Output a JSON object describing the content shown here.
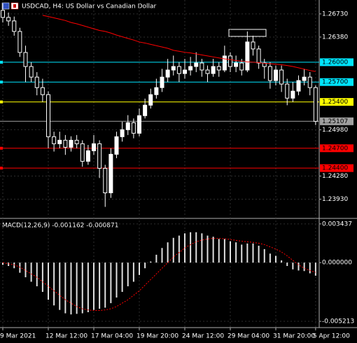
{
  "chart_data": [
    {
      "type": "candlestick",
      "title": "USDCAD, H4:  US Dollar vs Canadian Dollar",
      "categories": [
        "9 Mar 2021",
        null,
        null,
        null,
        null,
        null,
        null,
        null,
        "12 Mar 12:00",
        null,
        null,
        null,
        null,
        null,
        null,
        null,
        "17 Mar 04:00",
        null,
        null,
        null,
        null,
        null,
        null,
        null,
        "19 Mar 20:00",
        null,
        null,
        null,
        null,
        null,
        null,
        null,
        "24 Mar 12:00",
        null,
        null,
        null,
        null,
        null,
        null,
        null,
        "29 Mar 04:00",
        null,
        null,
        null,
        null,
        null,
        null,
        null,
        "31 Mar 20:00",
        null,
        null,
        null,
        null,
        null,
        null,
        "5 Apr 12:00"
      ],
      "open": [
        1.26783,
        1.26677,
        1.26624,
        1.26465,
        1.26147,
        1.25935,
        1.25775,
        1.25616,
        1.2551,
        1.24874,
        1.24768,
        1.24821,
        1.24715,
        1.24821,
        1.24768,
        1.24503,
        1.24662,
        1.24768,
        1.24397,
        1.24026,
        1.24609,
        1.24874,
        1.2498,
        1.25086,
        1.24927,
        1.25192,
        1.25351,
        1.2551,
        1.25616,
        1.25775,
        1.25882,
        1.25935,
        1.25829,
        1.25882,
        1.25935,
        1.25988,
        1.25882,
        1.25829,
        1.25935,
        1.25882,
        1.26094,
        1.25935,
        1.25988,
        1.25882,
        1.26306,
        1.262,
        1.25988,
        1.25935,
        1.25723,
        1.25882,
        1.2567,
        1.25457,
        1.25563,
        1.25723,
        1.25775,
        1.25616
      ],
      "high": [
        1.26889,
        1.2675,
        1.2669,
        1.2652,
        1.2625,
        1.26,
        1.2585,
        1.2575,
        1.2556,
        1.2495,
        1.2495,
        1.249,
        1.2488,
        1.249,
        1.2482,
        1.2475,
        1.249,
        1.2482,
        1.2445,
        1.247,
        1.2495,
        1.251,
        1.252,
        1.2515,
        1.253,
        1.2545,
        1.256,
        1.2575,
        1.259,
        1.2605,
        1.261,
        1.26,
        1.2605,
        1.2608,
        1.2615,
        1.2605,
        1.2595,
        1.2605,
        1.26,
        1.2625,
        1.2615,
        1.261,
        1.2605,
        1.26465,
        1.264,
        1.2625,
        1.2605,
        1.26,
        1.2595,
        1.2595,
        1.2575,
        1.257,
        1.258,
        1.259,
        1.2585,
        1.2565
      ],
      "low": [
        1.266,
        1.2655,
        1.264,
        1.2608,
        1.257,
        1.257,
        1.255,
        1.254,
        1.247,
        1.2465,
        1.247,
        1.246,
        1.2465,
        1.247,
        1.2442,
        1.2445,
        1.246,
        1.2425,
        1.23814,
        1.2395,
        1.2455,
        1.248,
        1.249,
        1.2485,
        1.2488,
        1.2515,
        1.253,
        1.2545,
        1.2555,
        1.257,
        1.258,
        1.257,
        1.2575,
        1.258,
        1.2585,
        1.2578,
        1.257,
        1.2578,
        1.2578,
        1.2585,
        1.2585,
        1.2585,
        1.258,
        1.2585,
        1.261,
        1.259,
        1.2575,
        1.256,
        1.2565,
        1.2555,
        1.2535,
        1.254,
        1.255,
        1.2565,
        1.255,
        1.2505
      ],
      "close": [
        1.26677,
        1.26624,
        1.26465,
        1.26147,
        1.25935,
        1.25775,
        1.25616,
        1.2551,
        1.24874,
        1.24768,
        1.24821,
        1.24715,
        1.24821,
        1.24768,
        1.24503,
        1.24662,
        1.24768,
        1.24397,
        1.24026,
        1.24609,
        1.24874,
        1.2498,
        1.25086,
        1.24927,
        1.25192,
        1.25351,
        1.2551,
        1.25616,
        1.25775,
        1.25882,
        1.25935,
        1.25829,
        1.25882,
        1.25935,
        1.25988,
        1.25882,
        1.25829,
        1.25935,
        1.25882,
        1.26094,
        1.25935,
        1.25988,
        1.25882,
        1.26306,
        1.262,
        1.25988,
        1.25935,
        1.25723,
        1.25882,
        1.2567,
        1.25457,
        1.25563,
        1.25723,
        1.25775,
        1.25616,
        1.25107
      ],
      "up_color": "#ffffff",
      "down_color": "#000000",
      "wick_color": "#ffffff",
      "moving_average": {
        "color": "#ff0000",
        "values": [
          null,
          null,
          null,
          null,
          null,
          null,
          null,
          1.26709,
          1.2669,
          1.2667,
          1.2665,
          1.2663,
          1.266,
          1.2658,
          1.26555,
          1.2653,
          1.26505,
          1.2648,
          1.26465,
          1.2644,
          1.2641,
          1.26385,
          1.2636,
          1.26335,
          1.26306,
          1.2629,
          1.2627,
          1.2625,
          1.2623,
          1.2621,
          1.2618,
          1.26165,
          1.2615,
          1.2614,
          1.26125,
          1.2611,
          1.26095,
          1.2608,
          1.26065,
          1.2605,
          1.2604,
          1.26025,
          1.26015,
          1.26005,
          1.26,
          1.25995,
          1.25985,
          1.25978,
          1.2597,
          1.25962,
          1.2595,
          1.25935,
          1.25915,
          1.25895,
          1.25875,
          1.2586
        ]
      },
      "levels": [
        {
          "value": 1.26,
          "label": "1.26000",
          "color": "#00e5ff"
        },
        {
          "value": 1.257,
          "label": "1.25700",
          "color": "#00e5ff"
        },
        {
          "value": 1.254,
          "label": "1.25400",
          "color": "#ffff00"
        },
        {
          "value": 1.247,
          "label": "1.24700",
          "color": "#ff0000"
        },
        {
          "value": 1.244,
          "label": "1.24400",
          "color": "#ff0000"
        }
      ],
      "current_price": 1.25107,
      "current_price_color": "#a0a0a0",
      "ylim": [
        1.2364,
        1.2694
      ],
      "yticks": [
        {
          "value": 1.2673,
          "label": "1.26730"
        },
        {
          "value": 1.2638,
          "label": "1.26380"
        },
        {
          "value": 1.2498,
          "label": "1.24980"
        },
        {
          "value": 1.2428,
          "label": "1.24280"
        },
        {
          "value": 1.2393,
          "label": "1.23930"
        }
      ],
      "grid": true
    },
    {
      "type": "macd",
      "title": "MACD(12,26,9) -0.001162 -0.000871",
      "histogram": {
        "color": "#e0e0e0",
        "values": [
          -0.0002,
          -0.0003,
          -0.0005,
          -0.0009,
          -0.0013,
          -0.0017,
          -0.0021,
          -0.0026,
          -0.0033,
          -0.0038,
          -0.0042,
          -0.0045,
          -0.0046,
          -0.00455,
          -0.0045,
          -0.0044,
          -0.0042,
          -0.0041,
          -0.004,
          -0.0036,
          -0.0031,
          -0.0026,
          -0.0021,
          -0.0017,
          -0.0011,
          -0.0005,
          0.0001,
          0.0007,
          0.0013,
          0.0018,
          0.0022,
          0.0024,
          0.0026,
          0.0027,
          0.0027,
          0.0026,
          0.0024,
          0.0023,
          0.0021,
          0.0021,
          0.0019,
          0.0018,
          0.0016,
          0.0017,
          0.0017,
          0.0015,
          0.0012,
          0.0008,
          0.0006,
          0.0002,
          -0.0003,
          -0.0006,
          -0.0007,
          -0.00075,
          -0.00095,
          -0.001162
        ]
      },
      "signal": {
        "color": "#ff0000",
        "values": [
          0.0,
          -0.0001,
          -0.0002,
          -0.0004,
          -0.0007,
          -0.001,
          -0.0013,
          -0.0017,
          -0.0021,
          -0.0025,
          -0.0029,
          -0.0033,
          -0.0036,
          -0.0039,
          -0.0041,
          -0.0042,
          -0.00425,
          -0.00425,
          -0.0042,
          -0.0041,
          -0.0039,
          -0.0036,
          -0.0033,
          -0.0029,
          -0.0025,
          -0.002,
          -0.0015,
          -0.001,
          -0.0005,
          0.0,
          0.0005,
          0.0009,
          0.0013,
          0.0016,
          0.00185,
          0.002,
          0.0021,
          0.00215,
          0.00215,
          0.00212,
          0.00205,
          0.00198,
          0.0019,
          0.00185,
          0.0018,
          0.00172,
          0.0016,
          0.0014,
          0.0012,
          0.00095,
          0.0006,
          0.0002,
          -0.0002,
          -0.0005,
          -0.0007,
          -0.000871
        ]
      },
      "ylim": [
        -0.00577,
        0.00374
      ],
      "yticks": [
        0.003437,
        {
          "value": 0,
          "label": "0.000000"
        },
        -0.005213
      ],
      "grid": true
    }
  ]
}
